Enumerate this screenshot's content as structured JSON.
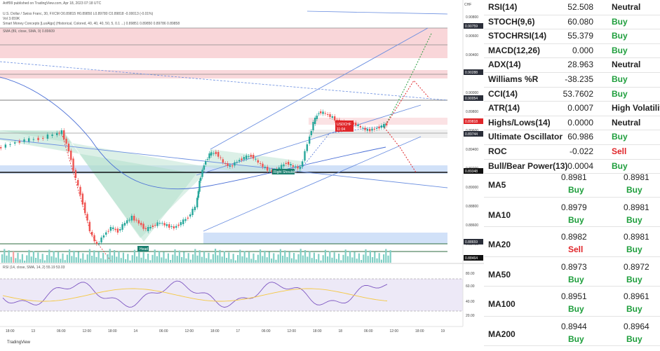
{
  "chart": {
    "published": "Ariff99 published on TradingView.com, Apr 18, 2023 07:18 UTC",
    "symbol_line": "U.S. Dollar / Swiss Franc, 30, FXCM  O0.89815  H0.89850  L0.89780  C0.89818  -0.00013 (-0.01%)",
    "vol_line": "Vol  3.659K",
    "smc_line": "Smart Money Concepts [LuxAlgo] (Historical, Colored, 40, 40, 40, 50, 5, 0.1 ...)  0.89851  0.89850  0.89786  0.89858",
    "sma_line": "SMA (89, close, SMA, 9)  0.89609",
    "rsi_header": "RSI (14, close, SMA, 14, 2)  55.19  53.03",
    "currency": "CHF",
    "badge_symbol": "USDCHF",
    "badge_price": "0.89818",
    "badge_time": "11:04",
    "label_right_shoulder": "Right Shoulder",
    "label_head": "Head",
    "brand": "TradingView",
    "price_ticks": [
      "0.90800",
      "0.90600",
      "0.90400",
      "0.90200",
      "0.90000",
      "0.89800",
      "0.89600",
      "0.89400",
      "0.89200",
      "0.89000",
      "0.88800",
      "0.88600",
      "0.88400"
    ],
    "highlight_prices": [
      {
        "label": "0.90759",
        "color": "#2a2e39"
      },
      {
        "label": "0.90288",
        "color": "#2a2e39"
      },
      {
        "label": "0.90054",
        "color": "#2a2e39"
      },
      {
        "label": "0.89818",
        "color": "#e0262a"
      },
      {
        "label": "0.89744",
        "color": "#2a2e39"
      },
      {
        "label": "0.89348",
        "color": "#111111"
      },
      {
        "label": "0.88659",
        "color": "#2a2e39"
      },
      {
        "label": "0.88464",
        "color": "#111111"
      }
    ],
    "rsi_ticks": [
      "80.00",
      "60.00",
      "40.00",
      "20.00"
    ],
    "time_ticks": [
      "18:00",
      "13",
      "06:00",
      "12:00",
      "18:00",
      "14",
      "06:00",
      "12:00",
      "18:00",
      "17",
      "06:00",
      "12:00",
      "18:00",
      "18",
      "06:00",
      "12:00",
      "18:00",
      "19"
    ]
  },
  "indicators": [
    {
      "name": "RSI(14)",
      "value": "52.508",
      "action": "Neutral",
      "status": "neutral"
    },
    {
      "name": "STOCH(9,6)",
      "value": "60.080",
      "action": "Buy",
      "status": "buy"
    },
    {
      "name": "STOCHRSI(14)",
      "value": "55.379",
      "action": "Buy",
      "status": "buy"
    },
    {
      "name": "MACD(12,26)",
      "value": "0.000",
      "action": "Buy",
      "status": "buy"
    },
    {
      "name": "ADX(14)",
      "value": "28.963",
      "action": "Neutral",
      "status": "neutral"
    },
    {
      "name": "Williams %R",
      "value": "-38.235",
      "action": "Buy",
      "status": "buy"
    },
    {
      "name": "CCI(14)",
      "value": "53.7602",
      "action": "Buy",
      "status": "buy"
    },
    {
      "name": "ATR(14)",
      "value": "0.0007",
      "action": "High Volatility",
      "status": "neutral"
    },
    {
      "name": "Highs/Lows(14)",
      "value": "0.0000",
      "action": "Neutral",
      "status": "neutral"
    },
    {
      "name": "Ultimate Oscillator",
      "value": "60.986",
      "action": "Buy",
      "status": "buy"
    },
    {
      "name": "ROC",
      "value": "-0.022",
      "action": "Sell",
      "status": "sell"
    },
    {
      "name": "Bull/Bear Power(13)",
      "value": "0.0004",
      "action": "Buy",
      "status": "buy"
    }
  ],
  "moving_averages": [
    {
      "name": "MA5",
      "simple": "0.8981",
      "simple_action": "Buy",
      "simple_status": "buy",
      "exponential": "0.8981",
      "exponential_action": "Buy",
      "exponential_status": "buy"
    },
    {
      "name": "MA10",
      "simple": "0.8979",
      "simple_action": "Buy",
      "simple_status": "buy",
      "exponential": "0.8981",
      "exponential_action": "Buy",
      "exponential_status": "buy"
    },
    {
      "name": "MA20",
      "simple": "0.8982",
      "simple_action": "Sell",
      "simple_status": "sell",
      "exponential": "0.8981",
      "exponential_action": "Buy",
      "exponential_status": "buy"
    },
    {
      "name": "MA50",
      "simple": "0.8973",
      "simple_action": "Buy",
      "simple_status": "buy",
      "exponential": "0.8972",
      "exponential_action": "Buy",
      "exponential_status": "buy"
    },
    {
      "name": "MA100",
      "simple": "0.8951",
      "simple_action": "Buy",
      "simple_status": "buy",
      "exponential": "0.8961",
      "exponential_action": "Buy",
      "exponential_status": "buy"
    },
    {
      "name": "MA200",
      "simple": "0.8944",
      "simple_action": "Buy",
      "simple_status": "buy",
      "exponential": "0.8964",
      "exponential_action": "Buy",
      "exponential_status": "buy"
    }
  ]
}
